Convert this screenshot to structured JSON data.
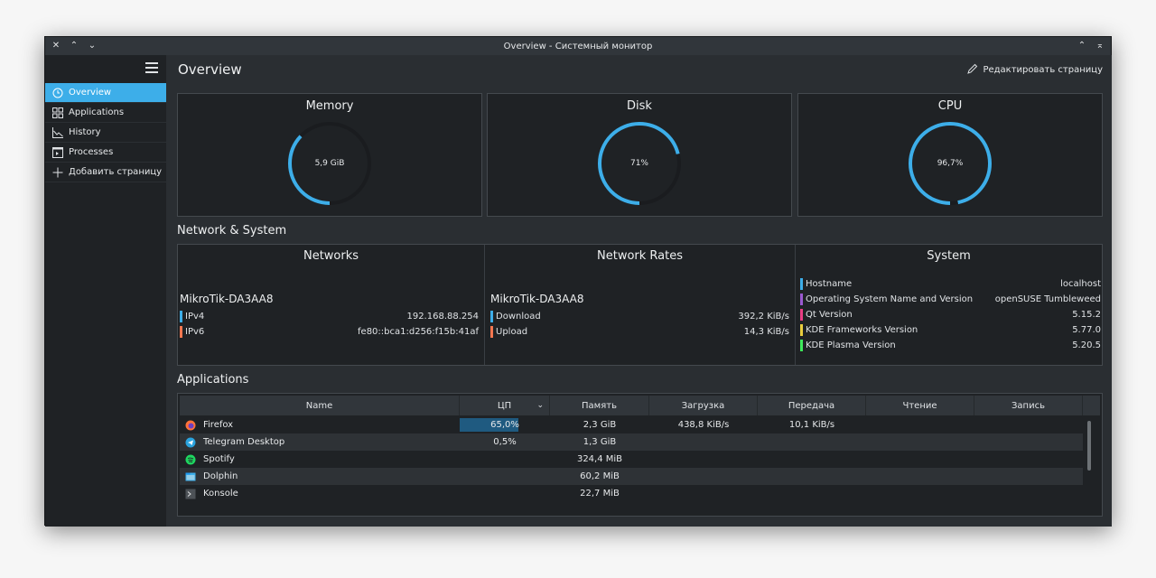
{
  "window": {
    "title": "Overview - Системный монитор",
    "buttons": [
      "close-icon",
      "minimize-icon",
      "maximize-icon"
    ],
    "right_buttons": [
      "keep-above-icon",
      "shade-icon"
    ]
  },
  "sidebar": {
    "items": [
      {
        "label": "Overview",
        "icon": "clock-icon",
        "active": true
      },
      {
        "label": "Applications",
        "icon": "grid-icon"
      },
      {
        "label": "History",
        "icon": "chart-icon"
      },
      {
        "label": "Processes",
        "icon": "terminal-icon"
      },
      {
        "label": "Добавить страницу",
        "icon": "plus-icon"
      }
    ]
  },
  "header": {
    "title": "Overview",
    "edit_label": "Редактировать страницу"
  },
  "gauges": [
    {
      "title": "Memory",
      "value": "5,9 GiB",
      "fraction": 0.37
    },
    {
      "title": "Disk",
      "value": "71%",
      "fraction": 0.71
    },
    {
      "title": "CPU",
      "value": "96,7%",
      "fraction": 0.967
    }
  ],
  "sections": {
    "network_system": "Network & System",
    "applications": "Applications"
  },
  "networks": {
    "title": "Networks",
    "interface": "MikroTik-DA3AA8",
    "rows": [
      {
        "label": "IPv4",
        "value": "192.168.88.254",
        "color": "#3daee9"
      },
      {
        "label": "IPv6",
        "value": "fe80::bca1:d256:f15b:41af",
        "color": "#f47750"
      }
    ]
  },
  "network_rates": {
    "title": "Network Rates",
    "interface": "MikroTik-DA3AA8",
    "rows": [
      {
        "label": "Download",
        "value": "392,2 KiB/s",
        "color": "#3daee9"
      },
      {
        "label": "Upload",
        "value": "14,3 KiB/s",
        "color": "#f47750"
      }
    ]
  },
  "system": {
    "title": "System",
    "rows": [
      {
        "label": "Hostname",
        "value": "localhost",
        "color": "#3daee9"
      },
      {
        "label": "Operating System Name and Version",
        "value": "openSUSE Tumbleweed",
        "color": "#9b59d0"
      },
      {
        "label": "Qt Version",
        "value": "5.15.2",
        "color": "#e93d83"
      },
      {
        "label": "KDE Frameworks Version",
        "value": "5.77.0",
        "color": "#e9cd3d"
      },
      {
        "label": "KDE Plasma Version",
        "value": "5.20.5",
        "color": "#3de95b"
      }
    ]
  },
  "apps_table": {
    "columns": [
      "Name",
      "ЦП",
      "Память",
      "Загрузка",
      "Передача",
      "Чтение",
      "Запись"
    ],
    "rows": [
      {
        "name": "Firefox",
        "icon": "firefox-icon",
        "cpu": "65,0%",
        "cpu_fraction": 0.65,
        "memory": "2,3 GiB",
        "download": "438,8 KiB/s",
        "upload": "10,1 KiB/s",
        "read": "",
        "write": ""
      },
      {
        "name": "Telegram Desktop",
        "icon": "telegram-icon",
        "cpu": "0,5%",
        "cpu_fraction": 0.005,
        "memory": "1,3 GiB",
        "download": "",
        "upload": "",
        "read": "",
        "write": ""
      },
      {
        "name": "Spotify",
        "icon": "spotify-icon",
        "cpu": "",
        "cpu_fraction": 0,
        "memory": "324,4 MiB",
        "download": "",
        "upload": "",
        "read": "",
        "write": ""
      },
      {
        "name": "Dolphin",
        "icon": "dolphin-icon",
        "cpu": "",
        "cpu_fraction": 0,
        "memory": "60,2 MiB",
        "download": "",
        "upload": "",
        "read": "",
        "write": ""
      },
      {
        "name": "Konsole",
        "icon": "konsole-icon",
        "cpu": "",
        "cpu_fraction": 0,
        "memory": "22,7 MiB",
        "download": "",
        "upload": "",
        "read": "",
        "write": ""
      }
    ]
  },
  "colors": {
    "accent": "#3daee9",
    "background": "#2a2e32",
    "panel": "#1f2225"
  }
}
